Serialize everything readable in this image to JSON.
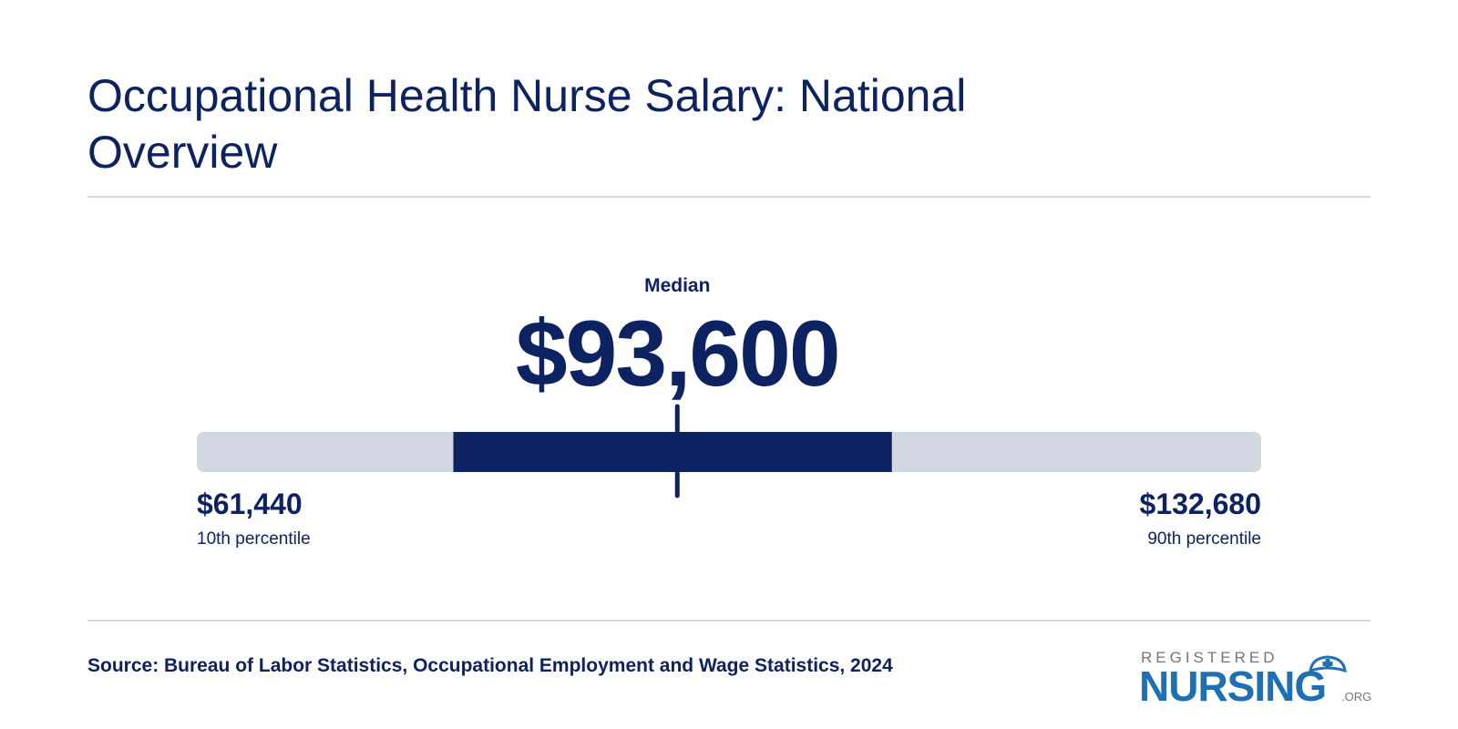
{
  "title": "Occupational Health Nurse Salary: National Overview",
  "chart_data": {
    "type": "range",
    "median": {
      "label": "Median",
      "value": 93600,
      "display": "$93,600"
    },
    "p10": {
      "label": "10th percentile",
      "value": 61440,
      "display": "$61,440"
    },
    "p90": {
      "label": "90th percentile",
      "value": 132680,
      "display": "$132,680"
    },
    "middle_band_fraction": [
      0.241,
      0.653
    ],
    "colors": {
      "track": "#d3d7e1",
      "band": "#0d2260",
      "marker": "#0d2260"
    }
  },
  "source": "Source: Bureau of Labor Statistics, Occupational Employment and Wage Statistics, 2024",
  "logo": {
    "top_text": "REGISTERED",
    "main_text": "NURSING",
    "suffix": ".ORG",
    "icon": "nurse-cap-icon"
  }
}
